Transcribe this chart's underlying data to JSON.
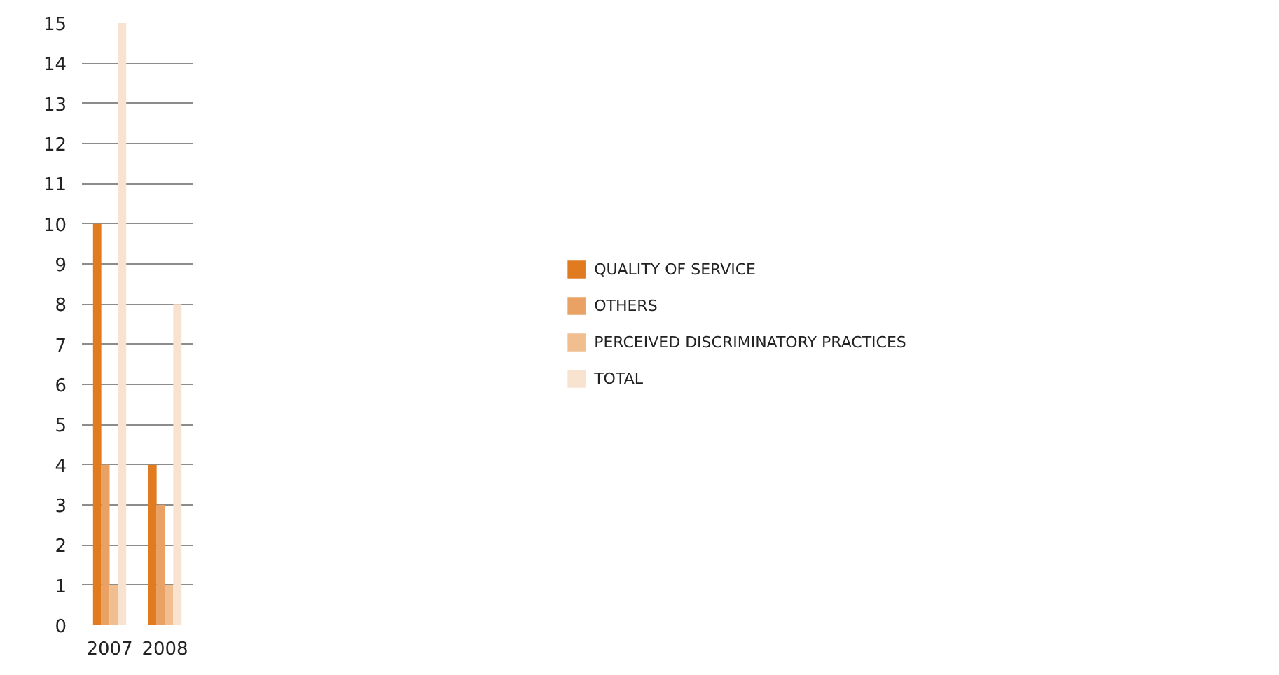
{
  "chart_data": {
    "type": "bar",
    "categories": [
      "2007",
      "2008"
    ],
    "series": [
      {
        "name": "QUALITY OF SERVICE",
        "color": "#e07b20",
        "values": [
          10,
          4
        ]
      },
      {
        "name": "OTHERS",
        "color": "#e9a264",
        "values": [
          4,
          3
        ]
      },
      {
        "name": "PERCEIVED DISCRIMINATORY PRACTICES",
        "color": "#f1be8f",
        "values": [
          1,
          1
        ]
      },
      {
        "name": "TOTAL",
        "color": "#f8e2d0",
        "values": [
          15,
          8
        ]
      }
    ],
    "ylim": [
      0,
      15
    ],
    "yticks": [
      0,
      1,
      2,
      3,
      4,
      5,
      6,
      7,
      8,
      9,
      10,
      11,
      12,
      13,
      14,
      15
    ],
    "grid": "y",
    "legend": "right"
  }
}
